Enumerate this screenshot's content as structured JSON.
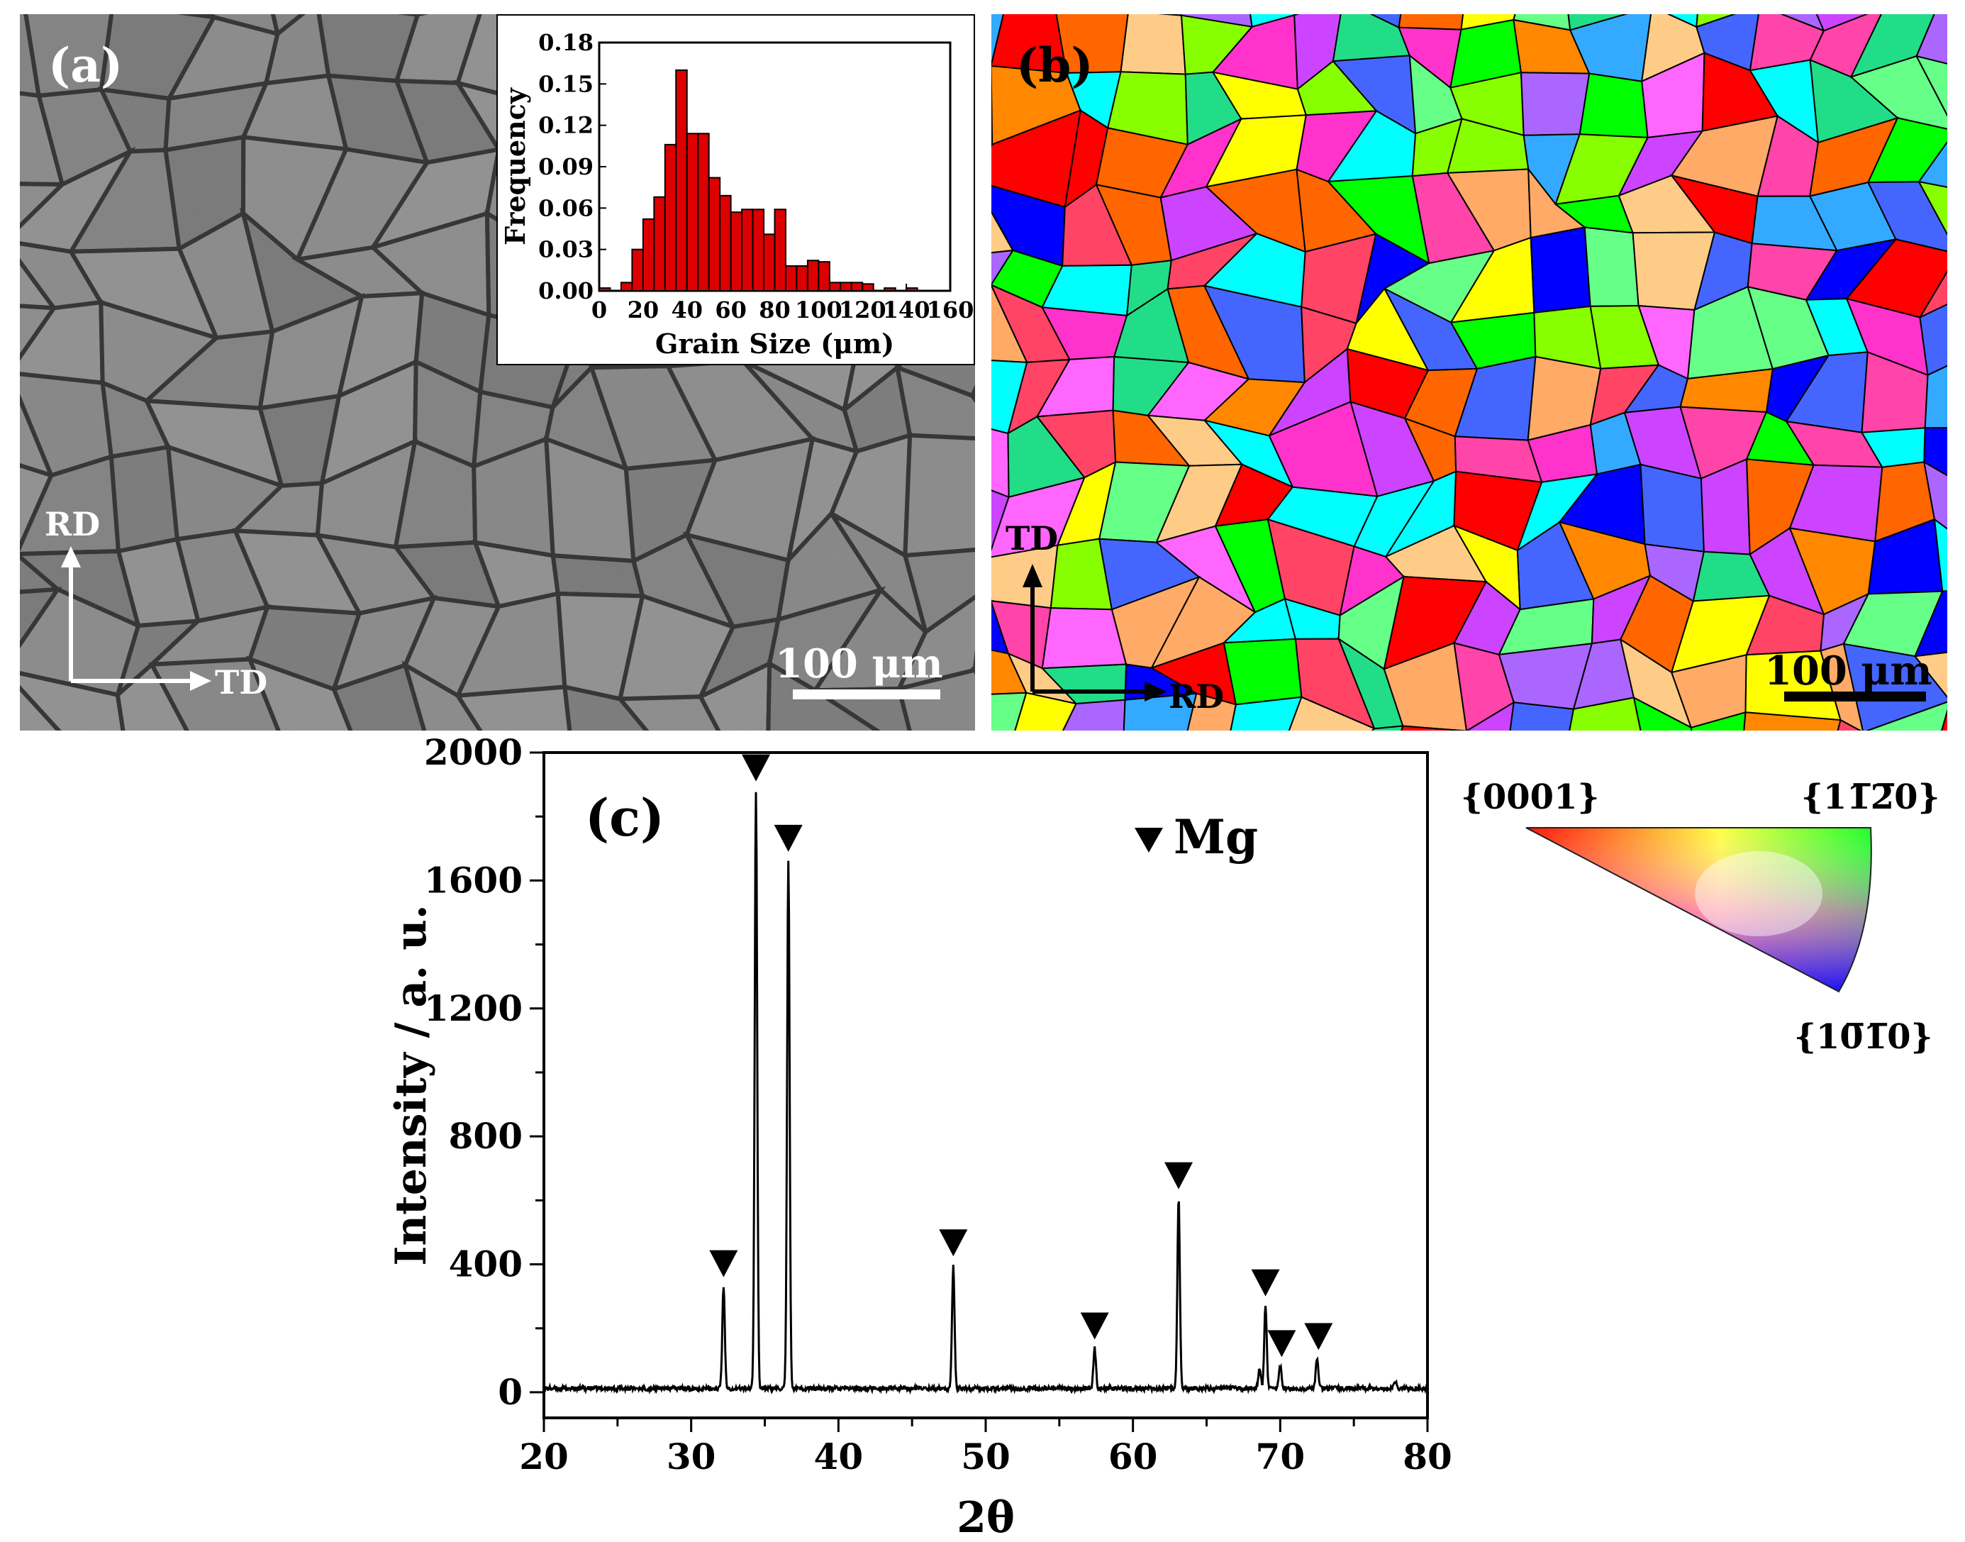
{
  "panel_a": {
    "label": "(a)",
    "axis_rd": "RD",
    "axis_td": "TD",
    "scalebar_text": "100 μm"
  },
  "panel_b": {
    "label": "(b)",
    "axis_td": "TD",
    "axis_rd": "RD",
    "scalebar_text": "100 μm"
  },
  "ipf_key": {
    "label_0001": "{0001}",
    "label_11-20": "{11̅2̅0}",
    "label_10-10": "{10̅1̅0}"
  },
  "colors": {
    "histogram_bar": "#dd0000",
    "line": "#000000"
  },
  "chart_data": [
    {
      "type": "bar",
      "title": "",
      "xlabel": "Grain Size (μm)",
      "ylabel": "Frequency",
      "xlim": [
        0,
        160
      ],
      "ylim": [
        0,
        0.18
      ],
      "xticks": [
        0,
        20,
        40,
        60,
        80,
        100,
        120,
        140,
        160
      ],
      "yticks": [
        "0.00",
        "0.03",
        "0.06",
        "0.09",
        "0.12",
        "0.15",
        "0.18"
      ],
      "bin_width": 5,
      "bin_centers": [
        2.5,
        12.5,
        17.5,
        22.5,
        27.5,
        32.5,
        37.5,
        42.5,
        47.5,
        52.5,
        57.5,
        62.5,
        67.5,
        72.5,
        77.5,
        82.5,
        87.5,
        92.5,
        97.5,
        102.5,
        107.5,
        112.5,
        117.5,
        122.5,
        132.5,
        142.5
      ],
      "values": [
        0.002,
        0.006,
        0.03,
        0.052,
        0.068,
        0.106,
        0.16,
        0.114,
        0.114,
        0.082,
        0.069,
        0.057,
        0.059,
        0.059,
        0.041,
        0.059,
        0.018,
        0.018,
        0.022,
        0.021,
        0.006,
        0.006,
        0.006,
        0.005,
        0.002,
        0.002
      ]
    },
    {
      "type": "line",
      "panel_label": "(c)",
      "title": "",
      "xlabel": "2θ",
      "ylabel": "Intensity / a. u.",
      "xlim": [
        20,
        80
      ],
      "ylim": [
        -80,
        2000
      ],
      "xticks": [
        20,
        30,
        40,
        50,
        60,
        70,
        80
      ],
      "yticks": [
        0,
        400,
        800,
        1200,
        1600,
        2000
      ],
      "legend": "Mg",
      "baseline": 12,
      "peaks": [
        {
          "x": 32.2,
          "y": 320
        },
        {
          "x": 34.4,
          "y": 1870
        },
        {
          "x": 36.6,
          "y": 1650
        },
        {
          "x": 47.8,
          "y": 385
        },
        {
          "x": 57.4,
          "y": 125
        },
        {
          "x": 63.1,
          "y": 595
        },
        {
          "x": 68.6,
          "y": 60
        },
        {
          "x": 69.0,
          "y": 260
        },
        {
          "x": 70.0,
          "y": 70
        },
        {
          "x": 72.5,
          "y": 92
        },
        {
          "x": 77.8,
          "y": 22
        }
      ],
      "mg_markers": [
        32.2,
        34.4,
        36.6,
        47.8,
        57.4,
        63.1,
        69.0,
        70.1,
        72.6
      ]
    }
  ]
}
